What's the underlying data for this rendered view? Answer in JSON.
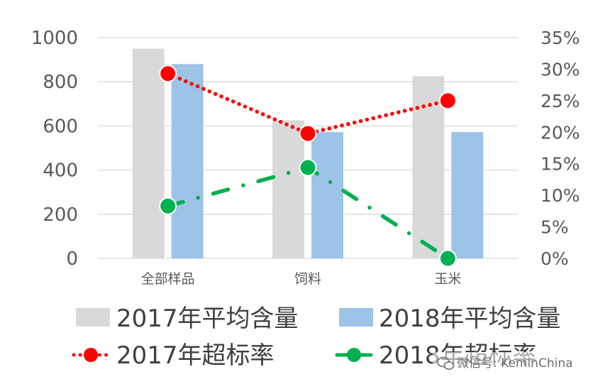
{
  "chart_data": {
    "type": "bar",
    "categories": [
      "全部样品",
      "饲料",
      "玉米"
    ],
    "series": [
      {
        "name": "2017年平均含量",
        "kind": "bar",
        "axis": "left",
        "color": "#d9d9d9",
        "values": [
          950,
          625,
          825
        ]
      },
      {
        "name": "2018年平均含量",
        "kind": "bar",
        "axis": "left",
        "color": "#9dc3e6",
        "values": [
          880,
          572,
          572
        ]
      },
      {
        "name": "2017年超标率",
        "kind": "line",
        "axis": "right",
        "color": "#ff0000",
        "line_style": "dotted",
        "values": [
          29.3,
          19.8,
          25.0
        ]
      },
      {
        "name": "2018年超标率",
        "kind": "line",
        "axis": "right",
        "color": "#00b050",
        "line_style": "dash-dot",
        "values": [
          8.3,
          14.4,
          0.0
        ]
      }
    ],
    "y_left": {
      "ylim": [
        0,
        1000
      ],
      "ticks": [
        0,
        200,
        400,
        600,
        800,
        1000
      ],
      "tick_labels": [
        "0",
        "200",
        "400",
        "600",
        "800",
        "1000"
      ]
    },
    "y_right": {
      "ylim": [
        0,
        35
      ],
      "ticks": [
        0,
        5,
        10,
        15,
        20,
        25,
        30,
        35
      ],
      "tick_labels": [
        "0%",
        "5%",
        "10%",
        "15%",
        "20%",
        "25%",
        "30%",
        "35%"
      ]
    },
    "grid": true,
    "legend_position": "bottom",
    "title": "",
    "xlabel": "",
    "ylabel": ""
  },
  "watermark": {
    "text": "微信号: KeminChina",
    "icon": "wechat-icon"
  }
}
